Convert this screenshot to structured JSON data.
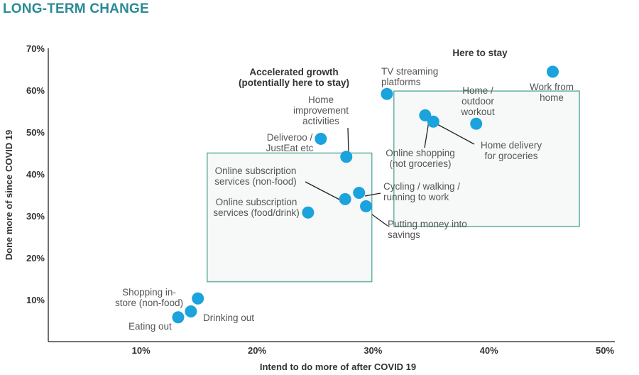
{
  "heading": "LONG-TERM CHANGE",
  "colors": {
    "accent": "#2a8a96",
    "point": "#1aa3dc",
    "box_stroke": "#6bb5a8",
    "box_fill": "#f7f8f8"
  },
  "chart_data": {
    "type": "scatter",
    "title": "",
    "xlabel": "Intend to do more of after COVID 19",
    "ylabel": "Done more of since COVID 19",
    "xlim": [
      0.02,
      0.5
    ],
    "ylim": [
      0.0,
      0.7
    ],
    "x_ticks": [
      "10%",
      "20%",
      "30%",
      "40%",
      "50%"
    ],
    "y_ticks": [
      "10%",
      "20%",
      "30%",
      "40%",
      "50%",
      "60%",
      "70%"
    ],
    "grid": false,
    "regions": [
      {
        "title": [
          "Accelerated growth",
          "(potentially here to stay)"
        ],
        "x_range": [
          0.157,
          0.299
        ],
        "y_range": [
          0.143,
          0.45
        ]
      },
      {
        "title": [
          "Here to stay"
        ],
        "x_range": [
          0.318,
          0.478
        ],
        "y_range": [
          0.275,
          0.598
        ]
      }
    ],
    "points": [
      {
        "label": [
          "Work from",
          "home"
        ],
        "x": 0.455,
        "y": 0.644
      },
      {
        "label": [
          "TV streaming",
          "platforms"
        ],
        "x": 0.312,
        "y": 0.591
      },
      {
        "label": [
          "Home /",
          "outdoor",
          "workout"
        ],
        "x": 0.389,
        "y": 0.52
      },
      {
        "label": [
          "Online shopping",
          "(not groceries)"
        ],
        "x": 0.345,
        "y": 0.54
      },
      {
        "label": [
          "Home delivery",
          "for groceries"
        ],
        "x": 0.352,
        "y": 0.525
      },
      {
        "label": [
          "Home",
          "improvement",
          "activities"
        ],
        "x": 0.277,
        "y": 0.441
      },
      {
        "label": [
          "Deliveroo /",
          "JustEat etc"
        ],
        "x": 0.255,
        "y": 0.484
      },
      {
        "label": [
          "Online subscription",
          "services (non-food)"
        ],
        "x": 0.276,
        "y": 0.34
      },
      {
        "label": [
          "Cycling / walking /",
          "running to work"
        ],
        "x": 0.288,
        "y": 0.355
      },
      {
        "label": [
          "Putting money into",
          "savings"
        ],
        "x": 0.294,
        "y": 0.323
      },
      {
        "label": [
          "Online subscription",
          "services (food/drink)"
        ],
        "x": 0.244,
        "y": 0.308
      },
      {
        "label": [
          "Shopping in-",
          "store (non-food)"
        ],
        "x": 0.149,
        "y": 0.103
      },
      {
        "label": [
          "Drinking out"
        ],
        "x": 0.143,
        "y": 0.072
      },
      {
        "label": [
          "Eating out"
        ],
        "x": 0.132,
        "y": 0.058
      }
    ]
  }
}
